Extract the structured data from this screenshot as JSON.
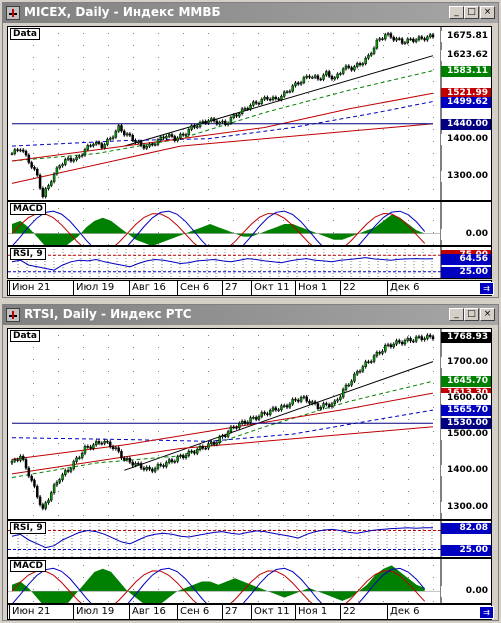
{
  "windows": [
    {
      "title": "MICEX, Daily - Индекс ММВБ",
      "buttons": {
        "minimize": "_",
        "maximize": "□",
        "close": "×"
      },
      "price_label": "Data",
      "macd_label": "MACD",
      "rsi_label": "RSI, 9",
      "price_tags": [
        {
          "text": "1675.81",
          "color": "#000000",
          "bg": "#ffffff"
        },
        {
          "text": "1623.62",
          "color": "#000000",
          "bg": "#ffffff"
        },
        {
          "text": "1583.11",
          "color": "#ffffff",
          "bg": "#008000"
        },
        {
          "text": "1521.99",
          "color": "#ffffff",
          "bg": "#c00000"
        },
        {
          "text": "1499.62",
          "color": "#ffffff",
          "bg": "#0000c0"
        },
        {
          "text": "1440.00",
          "color": "#ffffff",
          "bg": "#000080"
        },
        {
          "text": "1400.00",
          "color": "#000000",
          "bg": "#ffffff"
        },
        {
          "text": "1300.00",
          "color": "#000000",
          "bg": "#ffffff"
        }
      ],
      "macd_tags": [
        {
          "text": "0.00",
          "color": "#000000",
          "bg": "#ffffff"
        }
      ],
      "rsi_tags": [
        {
          "text": "75.00",
          "color": "#ffffff",
          "bg": "#c00000"
        },
        {
          "text": "64.56",
          "color": "#ffffff",
          "bg": "#0000c0"
        },
        {
          "text": "25.00",
          "color": "#ffffff",
          "bg": "#0000c0"
        }
      ],
      "x_labels": [
        "Июн 21",
        "Июл 19",
        "Авг 16",
        "Сен 6",
        "27",
        "Окт 11",
        "Ноя 1",
        "22",
        "Дек 6"
      ],
      "nav_icon": "scroll-right-icon"
    },
    {
      "title": "RTSI, Daily - Индекс РТС",
      "buttons": {
        "minimize": "_",
        "maximize": "□",
        "close": "×"
      },
      "price_label": "Data",
      "macd_label": "MACD",
      "rsi_label": "RSI, 9",
      "price_tags": [
        {
          "text": "1768.93",
          "color": "#ffffff",
          "bg": "#000000"
        },
        {
          "text": "1700.00",
          "color": "#000000",
          "bg": "#ffffff"
        },
        {
          "text": "1645.70",
          "color": "#ffffff",
          "bg": "#008000"
        },
        {
          "text": "1613.30",
          "color": "#ffffff",
          "bg": "#c00000"
        },
        {
          "text": "1600.00",
          "color": "#000000",
          "bg": "#ffffff"
        },
        {
          "text": "1565.70",
          "color": "#ffffff",
          "bg": "#0000c0"
        },
        {
          "text": "1530.00",
          "color": "#ffffff",
          "bg": "#000080"
        },
        {
          "text": "1500.00",
          "color": "#000000",
          "bg": "#ffffff"
        },
        {
          "text": "1400.00",
          "color": "#000000",
          "bg": "#ffffff"
        },
        {
          "text": "1300.00",
          "color": "#000000",
          "bg": "#ffffff"
        }
      ],
      "macd_tags": [
        {
          "text": "0.00",
          "color": "#000000",
          "bg": "#ffffff"
        }
      ],
      "rsi_tags": [
        {
          "text": "82.08",
          "color": "#ffffff",
          "bg": "#0000c0"
        },
        {
          "text": "25.00",
          "color": "#ffffff",
          "bg": "#0000c0"
        }
      ],
      "x_labels": [
        "Июн 21",
        "Июл 19",
        "Авг 16",
        "Сен 6",
        "27",
        "Окт 11",
        "Ноя 1",
        "22",
        "Дек 6"
      ],
      "nav_icon": "scroll-right-icon"
    }
  ],
  "chart_data": [
    {
      "type": "candlestick",
      "title": "MICEX, Daily - Индекс ММВБ",
      "ylim": [
        1230,
        1700
      ],
      "close_path": [
        [
          0,
          1360
        ],
        [
          3,
          1375
        ],
        [
          6,
          1340
        ],
        [
          9,
          1300
        ],
        [
          11,
          1245
        ],
        [
          14,
          1290
        ],
        [
          17,
          1330
        ],
        [
          20,
          1345
        ],
        [
          23,
          1345
        ],
        [
          26,
          1370
        ],
        [
          29,
          1390
        ],
        [
          32,
          1380
        ],
        [
          35,
          1400
        ],
        [
          38,
          1430
        ],
        [
          40,
          1415
        ],
        [
          43,
          1400
        ],
        [
          46,
          1380
        ],
        [
          49,
          1380
        ],
        [
          52,
          1395
        ],
        [
          55,
          1410
        ],
        [
          58,
          1400
        ],
        [
          61,
          1410
        ],
        [
          64,
          1430
        ],
        [
          67,
          1440
        ],
        [
          70,
          1450
        ],
        [
          73,
          1445
        ],
        [
          76,
          1440
        ],
        [
          79,
          1460
        ],
        [
          82,
          1475
        ],
        [
          85,
          1490
        ],
        [
          88,
          1500
        ],
        [
          91,
          1510
        ],
        [
          94,
          1505
        ],
        [
          97,
          1520
        ],
        [
          100,
          1540
        ],
        [
          103,
          1555
        ],
        [
          106,
          1570
        ],
        [
          109,
          1560
        ],
        [
          112,
          1575
        ],
        [
          115,
          1560
        ],
        [
          118,
          1590
        ],
        [
          121,
          1590
        ],
        [
          124,
          1600
        ],
        [
          127,
          1620
        ],
        [
          130,
          1660
        ],
        [
          133,
          1680
        ],
        [
          136,
          1670
        ],
        [
          139,
          1660
        ],
        [
          142,
          1665
        ],
        [
          145,
          1668
        ],
        [
          148,
          1672
        ],
        [
          150,
          1676
        ]
      ],
      "overlays": [
        {
          "name": "trend",
          "color": "#000000",
          "points": [
            [
              40,
              1380
            ],
            [
              150,
              1623
            ]
          ]
        },
        {
          "name": "ma_fast",
          "color": "#008000",
          "points": [
            [
              0,
              1340
            ],
            [
              30,
              1360
            ],
            [
              60,
              1400
            ],
            [
              90,
              1470
            ],
            [
              120,
              1530
            ],
            [
              150,
              1583
            ]
          ]
        },
        {
          "name": "ma_mid",
          "color": "#0000c0",
          "points": [
            [
              0,
              1380
            ],
            [
              40,
              1395
            ],
            [
              70,
              1400
            ],
            [
              100,
              1430
            ],
            [
              130,
              1470
            ],
            [
              150,
              1500
            ]
          ]
        },
        {
          "name": "ma_slow",
          "color": "#c00000",
          "points": [
            [
              0,
              1340
            ],
            [
              30,
              1370
            ],
            [
              60,
              1400
            ],
            [
              90,
              1430
            ],
            [
              120,
              1480
            ],
            [
              150,
              1522
            ]
          ]
        },
        {
          "name": "support",
          "color": "#c00000",
          "points": [
            [
              0,
              1280
            ],
            [
              60,
              1380
            ],
            [
              150,
              1440
            ]
          ]
        },
        {
          "name": "level",
          "color": "#000080",
          "points": [
            [
              0,
              1440
            ],
            [
              150,
              1440
            ]
          ]
        }
      ],
      "macd_hist": [
        3,
        4,
        2,
        -1,
        -4,
        -6,
        -5,
        -3,
        -1,
        2,
        4,
        5,
        4,
        2,
        0,
        -2,
        -3,
        -4,
        -3,
        -2,
        -1,
        0,
        1,
        2,
        3,
        2,
        1,
        0,
        -1,
        -1,
        0,
        1,
        2,
        3,
        3,
        2,
        1,
        0,
        -1,
        -2,
        -2,
        -1,
        0,
        1,
        2,
        4,
        6,
        5,
        3,
        1,
        0
      ],
      "rsi": [
        55,
        60,
        45,
        40,
        35,
        30,
        45,
        55,
        60,
        58,
        62,
        55,
        50,
        45,
        40,
        50,
        58,
        62,
        60,
        55,
        50,
        52,
        58,
        60,
        62,
        58,
        55,
        60,
        65,
        62,
        58,
        55,
        52,
        58,
        62,
        65,
        60,
        58,
        55,
        60,
        62,
        65,
        68,
        64,
        62,
        60,
        63,
        64,
        65,
        64,
        64.56
      ],
      "rsi_levels": [
        75,
        25
      ]
    },
    {
      "type": "candlestick",
      "title": "RTSI, Daily - Индекс РТС",
      "ylim": [
        1260,
        1790
      ],
      "close_path": [
        [
          0,
          1420
        ],
        [
          3,
          1440
        ],
        [
          6,
          1390
        ],
        [
          9,
          1330
        ],
        [
          11,
          1290
        ],
        [
          14,
          1340
        ],
        [
          17,
          1380
        ],
        [
          20,
          1400
        ],
        [
          23,
          1430
        ],
        [
          26,
          1460
        ],
        [
          29,
          1470
        ],
        [
          32,
          1480
        ],
        [
          35,
          1470
        ],
        [
          38,
          1450
        ],
        [
          40,
          1430
        ],
        [
          43,
          1420
        ],
        [
          46,
          1410
        ],
        [
          49,
          1400
        ],
        [
          52,
          1410
        ],
        [
          55,
          1420
        ],
        [
          58,
          1430
        ],
        [
          61,
          1440
        ],
        [
          64,
          1450
        ],
        [
          67,
          1460
        ],
        [
          70,
          1470
        ],
        [
          73,
          1480
        ],
        [
          76,
          1500
        ],
        [
          79,
          1520
        ],
        [
          82,
          1530
        ],
        [
          85,
          1540
        ],
        [
          88,
          1550
        ],
        [
          91,
          1560
        ],
        [
          94,
          1570
        ],
        [
          97,
          1575
        ],
        [
          100,
          1590
        ],
        [
          103,
          1600
        ],
        [
          106,
          1590
        ],
        [
          109,
          1575
        ],
        [
          112,
          1580
        ],
        [
          115,
          1585
        ],
        [
          118,
          1620
        ],
        [
          121,
          1650
        ],
        [
          124,
          1680
        ],
        [
          127,
          1700
        ],
        [
          130,
          1720
        ],
        [
          133,
          1740
        ],
        [
          136,
          1750
        ],
        [
          139,
          1755
        ],
        [
          142,
          1760
        ],
        [
          145,
          1765
        ],
        [
          148,
          1767
        ],
        [
          150,
          1769
        ]
      ],
      "overlays": [
        {
          "name": "trend",
          "color": "#000000",
          "points": [
            [
              40,
              1400
            ],
            [
              150,
              1700
            ]
          ]
        },
        {
          "name": "ma_fast",
          "color": "#008000",
          "points": [
            [
              0,
              1380
            ],
            [
              30,
              1420
            ],
            [
              60,
              1440
            ],
            [
              90,
              1520
            ],
            [
              120,
              1590
            ],
            [
              150,
              1646
            ]
          ]
        },
        {
          "name": "ma_mid",
          "color": "#0000c0",
          "points": [
            [
              0,
              1490
            ],
            [
              40,
              1485
            ],
            [
              70,
              1480
            ],
            [
              100,
              1500
            ],
            [
              130,
              1540
            ],
            [
              150,
              1566
            ]
          ]
        },
        {
          "name": "ma_slow",
          "color": "#c00000",
          "points": [
            [
              0,
              1430
            ],
            [
              40,
              1470
            ],
            [
              80,
              1520
            ],
            [
              120,
              1570
            ],
            [
              150,
              1613
            ]
          ]
        },
        {
          "name": "support",
          "color": "#c00000",
          "points": [
            [
              0,
              1390
            ],
            [
              60,
              1460
            ],
            [
              150,
              1520
            ]
          ]
        },
        {
          "name": "level",
          "color": "#000080",
          "points": [
            [
              0,
              1530
            ],
            [
              150,
              1530
            ]
          ]
        }
      ],
      "macd_hist": [
        2,
        3,
        1,
        -2,
        -5,
        -7,
        -6,
        -3,
        0,
        3,
        6,
        7,
        6,
        3,
        0,
        -2,
        -4,
        -5,
        -4,
        -2,
        0,
        1,
        2,
        3,
        3,
        2,
        3,
        4,
        3,
        2,
        1,
        0,
        -1,
        -2,
        -1,
        0,
        1,
        0,
        -1,
        -2,
        -3,
        -2,
        0,
        2,
        5,
        7,
        8,
        6,
        4,
        2,
        1
      ],
      "rsi": [
        60,
        65,
        50,
        40,
        30,
        35,
        50,
        60,
        70,
        75,
        72,
        65,
        55,
        45,
        40,
        50,
        60,
        65,
        68,
        65,
        60,
        58,
        62,
        66,
        70,
        72,
        68,
        65,
        70,
        74,
        72,
        68,
        64,
        60,
        55,
        65,
        72,
        76,
        78,
        75,
        70,
        68,
        72,
        76,
        78,
        80,
        81,
        82,
        81,
        82,
        82.08
      ],
      "rsi_levels": [
        75,
        25
      ]
    }
  ]
}
